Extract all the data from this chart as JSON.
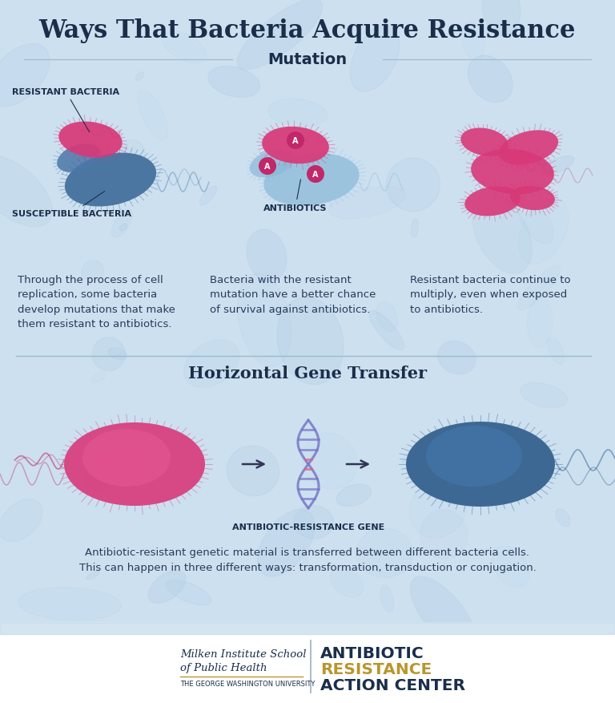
{
  "title": "Ways That Bacteria Acquire Resistance",
  "title_color": "#1a2e4a",
  "title_fontsize": 22,
  "section1_title": "Mutation",
  "section2_title": "Horizontal Gene Transfer",
  "section_title_color": "#1a2e4a",
  "section_title_fontsize": 14,
  "bg_color": "#cce0f0",
  "footer_bg": "#ffffff",
  "label_resistant": "RESISTANT BACTERIA",
  "label_susceptible": "SUSCEPTIBLE BACTERIA",
  "label_antibiotics": "ANTIBIOTICS",
  "label_gene": "ANTIBIOTIC-RESISTANCE GENE",
  "label_color": "#1a2e4a",
  "label_fontsize": 7.5,
  "desc1": "Through the process of cell\nreplication, some bacteria\ndevelop mutations that make\nthem resistant to antibiotics.",
  "desc2": "Bacteria with the resistant\nmutation have a better chance\nof survival against antibiotics.",
  "desc3": "Resistant bacteria continue to\nmultiply, even when exposed\nto antibiotics.",
  "desc4": "Antibiotic-resistant genetic material is transferred between different bacteria cells.\nThis can happen in three different ways: transformation, transduction or conjugation.",
  "desc_color": "#2a3a5a",
  "desc_fontsize": 9.5,
  "pink_color": "#d93878",
  "blue_color": "#2a5a8a",
  "light_blue_color": "#7aaac8",
  "footer_left1": "Milken Institute School",
  "footer_left2": "of Public Health",
  "footer_left3": "THE GEORGE WASHINGTON UNIVERSITY",
  "footer_right1": "ANTIBIOTIC",
  "footer_right2": "RESISTANCE",
  "footer_right3": "ACTION CENTER",
  "footer_left_color": "#1a2e4a",
  "footer_right1_color": "#1a2e4a",
  "footer_right2_color": "#b8962e",
  "footer_right3_color": "#1a2e4a",
  "divider_color": "#99bbcc",
  "dna_purple": "#7878c8",
  "dna_pink": "#e06080"
}
